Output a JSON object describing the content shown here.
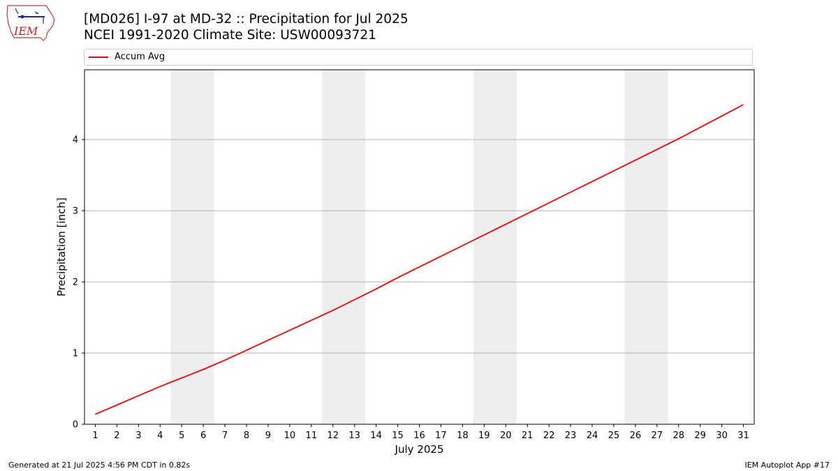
{
  "header": {
    "title_line1": "[MD026] I-97 at MD-32 :: Precipitation for Jul 2025",
    "title_line2": "NCEI 1991-2020 Climate Site: USW00093721",
    "logo_text": "IEM"
  },
  "legend": {
    "entries": [
      {
        "label": "Accum Avg",
        "color": "#ff0000"
      }
    ]
  },
  "footer": {
    "left": "Generated at 21 Jul 2025 4:56 PM CDT in 0.82s",
    "right": "IEM Autoplot App #17"
  },
  "chart_data": {
    "type": "line",
    "xlabel": "July 2025",
    "ylabel": "Precipitation [inch]",
    "xlim": [
      0.5,
      31.5
    ],
    "ylim": [
      0,
      4.98
    ],
    "yticks": [
      0,
      1,
      2,
      3,
      4
    ],
    "grid": "horizontal",
    "legend_position": "top",
    "weekend_shading_color": "#eeeeee",
    "weekend_spans": [
      [
        5,
        6
      ],
      [
        12,
        13
      ],
      [
        19,
        20
      ],
      [
        26,
        27
      ]
    ],
    "x": [
      1,
      2,
      3,
      4,
      5,
      6,
      7,
      8,
      9,
      10,
      11,
      12,
      13,
      14,
      15,
      16,
      17,
      18,
      19,
      20,
      21,
      22,
      23,
      24,
      25,
      26,
      27,
      28,
      29,
      30,
      31
    ],
    "xtick_labels": [
      "1",
      "2",
      "3",
      "4",
      "5",
      "6",
      "7",
      "8",
      "9",
      "10",
      "11",
      "12",
      "13",
      "14",
      "15",
      "16",
      "17",
      "18",
      "19",
      "20",
      "21",
      "22",
      "23",
      "24",
      "25",
      "26",
      "27",
      "28",
      "29",
      "30",
      "31"
    ],
    "series": [
      {
        "name": "Accum Avg",
        "color": "#ff0000",
        "values": [
          0.14,
          0.27,
          0.4,
          0.53,
          0.65,
          0.77,
          0.9,
          1.04,
          1.18,
          1.32,
          1.46,
          1.6,
          1.75,
          1.9,
          2.06,
          2.21,
          2.36,
          2.51,
          2.66,
          2.81,
          2.96,
          3.11,
          3.26,
          3.41,
          3.56,
          3.71,
          3.86,
          4.01,
          4.17,
          4.33,
          4.49
        ]
      }
    ]
  }
}
